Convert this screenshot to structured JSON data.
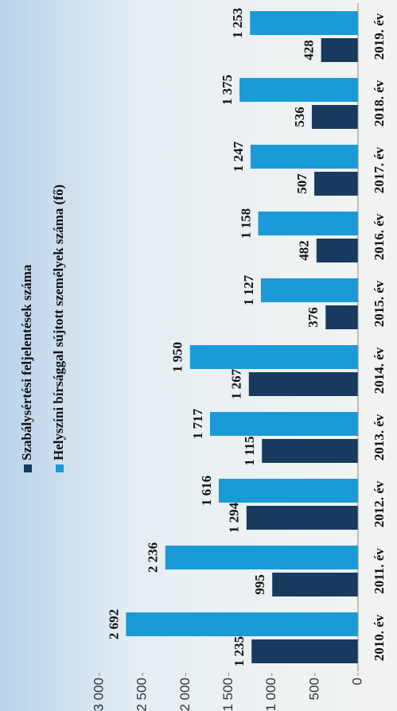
{
  "chart_data": {
    "type": "bar",
    "categories": [
      "2010. év",
      "2011. év",
      "2012. év",
      "2013. év",
      "2014. év",
      "2015. év",
      "2016. év",
      "2017. év",
      "2018. év",
      "2019. év"
    ],
    "series": [
      {
        "name": "Szabálysértési feljelentések száma",
        "color": "#173a5e",
        "values": [
          1235,
          995,
          1294,
          1115,
          1267,
          376,
          482,
          507,
          536,
          428
        ],
        "value_labels": [
          "1 235",
          "995",
          "1 294",
          "1 115",
          "1 267",
          "376",
          "482",
          "507",
          "536",
          "428"
        ]
      },
      {
        "name": "Helyszíni bírsággal sújtott személyek száma (fő)",
        "color": "#1b9ad8",
        "values": [
          2692,
          2236,
          1616,
          1717,
          1950,
          1127,
          1158,
          1247,
          1375,
          1253
        ],
        "value_labels": [
          "2 692",
          "2 236",
          "1 616",
          "1 717",
          "1 950",
          "1 127",
          "1 158",
          "1 247",
          "1 375",
          "1 253"
        ]
      }
    ],
    "ylim": [
      0,
      3000
    ],
    "yticks": [
      0,
      500,
      {
        "value": 1000,
        "label": "1 000"
      },
      {
        "value": 1500,
        "label": "1 500"
      },
      {
        "value": 2000,
        "label": "2 000"
      },
      {
        "value": 2500,
        "label": "2 500"
      },
      {
        "value": 3000,
        "label": "3 000"
      }
    ]
  }
}
